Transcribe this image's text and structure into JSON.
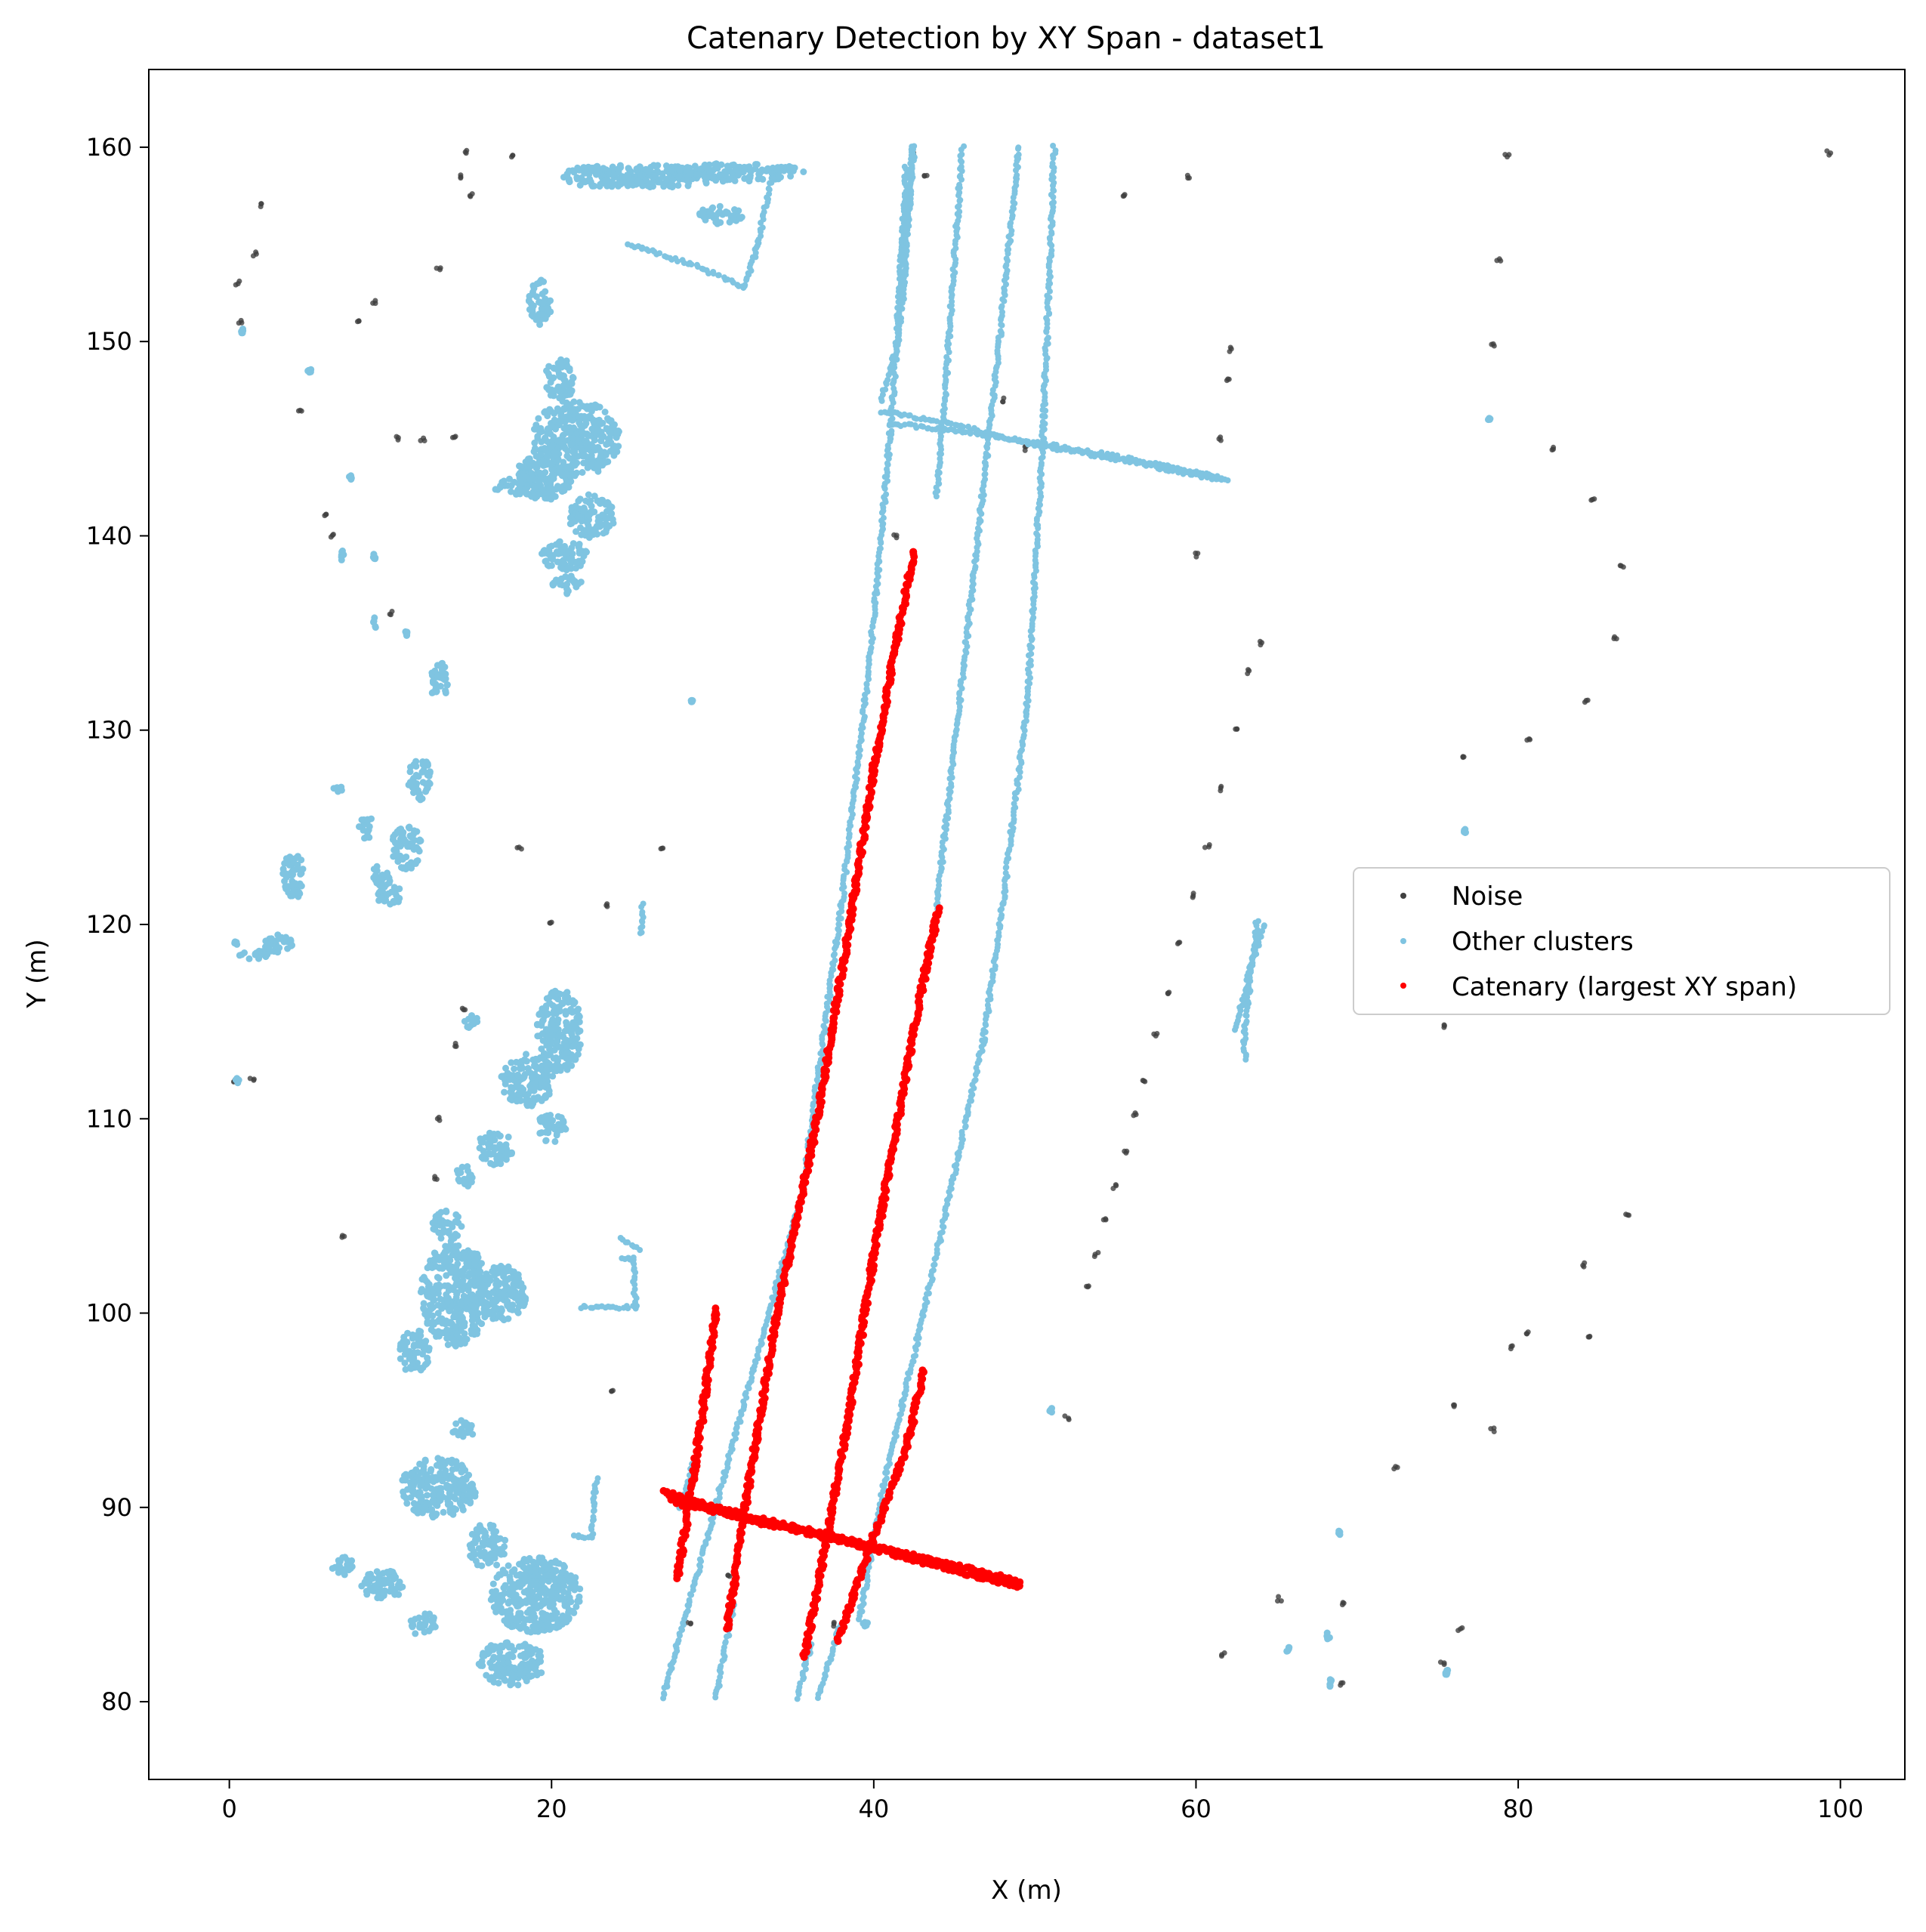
{
  "chart_data": {
    "type": "scatter",
    "title": "Catenary Detection by XY Span - dataset1",
    "xlabel": "X (m)",
    "ylabel": "Y (m)",
    "xlim": [
      -5,
      104
    ],
    "ylim": [
      76,
      164
    ],
    "xticks": [
      0,
      20,
      40,
      60,
      80,
      100
    ],
    "yticks": [
      80,
      90,
      100,
      110,
      120,
      130,
      140,
      150,
      160
    ],
    "grid": false,
    "legend_position": "center-right",
    "series": [
      {
        "name": "Noise",
        "color": "#404040",
        "style": "points",
        "points": [
          [
            0.5,
            153
          ],
          [
            0.7,
            151
          ],
          [
            1.6,
            154.5
          ],
          [
            2,
            157
          ],
          [
            0.3,
            112
          ],
          [
            1.4,
            112
          ],
          [
            4.4,
            146.5
          ],
          [
            6,
            141
          ],
          [
            6.4,
            140
          ],
          [
            8,
            151
          ],
          [
            9,
            152
          ],
          [
            10,
            136
          ],
          [
            10.5,
            145
          ],
          [
            12,
            145
          ],
          [
            13,
            153.7
          ],
          [
            14,
            145
          ],
          [
            14.3,
            158.5
          ],
          [
            14.7,
            159.8
          ],
          [
            15,
            157.5
          ],
          [
            17.5,
            159.5
          ],
          [
            14.6,
            115.6
          ],
          [
            14,
            113.8
          ],
          [
            13,
            110
          ],
          [
            12.8,
            107
          ],
          [
            26.8,
            124
          ],
          [
            23.5,
            121
          ],
          [
            23.8,
            96
          ],
          [
            7,
            104
          ],
          [
            18,
            124
          ],
          [
            20,
            120
          ],
          [
            28.5,
            84
          ],
          [
            31,
            86.5
          ],
          [
            37.5,
            84
          ],
          [
            41.3,
            140
          ],
          [
            42.4,
            159.7
          ],
          [
            43.2,
            158.5
          ],
          [
            48,
            147
          ],
          [
            49.5,
            144.5
          ],
          [
            59.5,
            158.5
          ],
          [
            55.5,
            157.5
          ],
          [
            60,
            139
          ],
          [
            61.5,
            145
          ],
          [
            62,
            148
          ],
          [
            62.2,
            149.6
          ],
          [
            64,
            134.5
          ],
          [
            63.3,
            133
          ],
          [
            62.5,
            130
          ],
          [
            61.6,
            127
          ],
          [
            60.7,
            124
          ],
          [
            59.8,
            121.5
          ],
          [
            59,
            119
          ],
          [
            58.2,
            116.5
          ],
          [
            57.5,
            114.3
          ],
          [
            56.8,
            112
          ],
          [
            56.2,
            110.2
          ],
          [
            55.6,
            108.3
          ],
          [
            55,
            106.5
          ],
          [
            54.4,
            104.8
          ],
          [
            53.8,
            103
          ],
          [
            53.2,
            101.3
          ],
          [
            79.3,
            159.6
          ],
          [
            78.8,
            154.2
          ],
          [
            78.4,
            149.8
          ],
          [
            82.2,
            144.5
          ],
          [
            84.6,
            141.9
          ],
          [
            86.4,
            138.5
          ],
          [
            86,
            134.8
          ],
          [
            84.2,
            131.5
          ],
          [
            80.6,
            129.5
          ],
          [
            76.6,
            128.6
          ],
          [
            75.4,
            114.8
          ],
          [
            86.8,
            105
          ],
          [
            84,
            102.5
          ],
          [
            84.5,
            98.8
          ],
          [
            80.5,
            99
          ],
          [
            79.5,
            98.2
          ],
          [
            76,
            95.2
          ],
          [
            78.4,
            94
          ],
          [
            72.4,
            92
          ],
          [
            76.4,
            83.7
          ],
          [
            65.2,
            85.3
          ],
          [
            69.2,
            85
          ],
          [
            61.7,
            82.4
          ],
          [
            69,
            80.9
          ],
          [
            75.3,
            82
          ],
          [
            52,
            94.6
          ],
          [
            99.3,
            159.7
          ]
        ]
      },
      {
        "name": "Other clusters",
        "color": "#7fc4e1",
        "style": "points",
        "points": [],
        "lines": [
          [
            [
              26.9,
              80.2
            ],
            [
              28.5,
              85
            ],
            [
              30.5,
              91
            ],
            [
              35.5,
              106
            ],
            [
              38,
              121
            ],
            [
              39.8,
              134
            ],
            [
              41,
              145
            ],
            [
              41.5,
              151
            ],
            [
              42,
              159
            ]
          ],
          [
            [
              28.8,
              92.2
            ],
            [
              28,
              90
            ]
          ],
          [
            [
              30.2,
              80.2
            ],
            [
              31.3,
              85
            ]
          ],
          [
            [
              35.3,
              80.2
            ],
            [
              36.1,
              83
            ]
          ],
          [
            [
              36.6,
              80.2
            ],
            [
              37.9,
              84
            ]
          ],
          [
            [
              39.1,
              84.2
            ],
            [
              40.6,
              91.1
            ],
            [
              43.1,
              100
            ],
            [
              45.2,
              108
            ],
            [
              46.8,
              114
            ],
            [
              48,
              121
            ],
            [
              49.5,
              131
            ],
            [
              50.5,
              145
            ],
            [
              51.2,
              160
            ]
          ],
          [
            [
              43.9,
              120.8
            ],
            [
              46.2,
              138
            ],
            [
              47.8,
              150
            ],
            [
              49,
              160
            ]
          ],
          [
            [
              43.9,
              142
            ],
            [
              44.5,
              148
            ],
            [
              45.5,
              160
            ]
          ],
          [
            [
              40.5,
              147
            ],
            [
              41.5,
              150
            ],
            [
              42.5,
              160
            ]
          ],
          [
            [
              41.8,
              152
            ],
            [
              42.4,
              160
            ]
          ],
          [
            [
              40.5,
              146.4
            ],
            [
              44.5,
              145.8
            ],
            [
              50,
              144.7
            ],
            [
              56,
              143.8
            ],
            [
              62,
              142.8
            ]
          ],
          [
            [
              41,
              145.8
            ],
            [
              47,
              145.2
            ],
            [
              55,
              144.1
            ],
            [
              61.5,
              143
            ]
          ],
          [
            [
              63.8,
              120.2
            ],
            [
              63.5,
              118
            ],
            [
              63.2,
              116
            ],
            [
              63,
              114
            ],
            [
              63.1,
              113
            ]
          ],
          [
            [
              62.5,
              114.6
            ],
            [
              63.4,
              117.8
            ],
            [
              64.2,
              120
            ]
          ],
          [
            [
              24.8,
              155
            ],
            [
              28.6,
              154
            ],
            [
              32,
              152.8
            ],
            [
              32.8,
              155
            ],
            [
              33.8,
              159
            ]
          ],
          [
            [
              24.3,
              102.8
            ],
            [
              25.1,
              102.8
            ],
            [
              25.2,
              100.3
            ],
            [
              21.8,
              100.3
            ]
          ],
          [
            [
              24.3,
              103.8
            ],
            [
              25.5,
              103.3
            ]
          ],
          [
            [
              21.4,
              88.5
            ],
            [
              22.5,
              88.5
            ],
            [
              22.6,
              90.2
            ],
            [
              22.8,
              91.5
            ]
          ],
          [
            [
              25.6,
              121
            ],
            [
              25.6,
              119.5
            ]
          ]
        ],
        "blobs": [
          [
            23.5,
            158.5,
            120,
            30
          ],
          [
            27,
            158.5,
            140,
            30
          ],
          [
            31.5,
            158.7,
            180,
            25
          ],
          [
            30.5,
            156.5,
            60,
            25
          ],
          [
            19.5,
            143,
            80,
            60
          ],
          [
            21.5,
            145,
            120,
            100
          ],
          [
            22.5,
            141,
            60,
            60
          ],
          [
            20.5,
            148,
            40,
            60
          ],
          [
            19.3,
            152,
            30,
            60
          ],
          [
            18.3,
            142.5,
            80,
            25
          ],
          [
            20.8,
            139,
            60,
            40
          ],
          [
            21,
            137.5,
            40,
            25
          ],
          [
            13,
            132.5,
            25,
            55
          ],
          [
            11.8,
            127.5,
            30,
            60
          ],
          [
            11,
            124,
            40,
            60
          ],
          [
            10,
            121.5,
            40,
            25
          ],
          [
            9.5,
            122.5,
            25,
            40
          ],
          [
            4,
            122.5,
            30,
            60
          ],
          [
            3,
            119,
            40,
            25
          ],
          [
            1.5,
            118.5,
            40,
            15
          ],
          [
            8.5,
            125,
            20,
            30
          ],
          [
            6.8,
            127,
            15,
            15
          ],
          [
            20.5,
            114.5,
            60,
            110
          ],
          [
            18.5,
            112,
            70,
            70
          ],
          [
            16.5,
            108.5,
            50,
            45
          ],
          [
            20,
            109.5,
            40,
            40
          ],
          [
            15,
            115,
            20,
            20
          ],
          [
            14.6,
            107,
            25,
            30
          ],
          [
            14,
            101,
            90,
            140
          ],
          [
            11.5,
            98,
            40,
            60
          ],
          [
            17,
            101,
            60,
            80
          ],
          [
            13.5,
            104.5,
            40,
            40
          ],
          [
            13,
            91,
            100,
            80
          ],
          [
            19,
            85.5,
            120,
            100
          ],
          [
            17.5,
            82,
            90,
            60
          ],
          [
            16,
            88,
            50,
            60
          ],
          [
            9.5,
            86,
            60,
            40
          ],
          [
            7,
            87,
            30,
            25
          ],
          [
            12,
            84,
            40,
            30
          ],
          [
            14.5,
            94,
            30,
            25
          ],
          [
            0.8,
            150.5,
            3,
            10
          ],
          [
            5,
            148.5,
            6,
            10
          ],
          [
            7.5,
            143,
            4,
            12
          ],
          [
            7,
            139,
            6,
            15
          ],
          [
            9,
            139,
            6,
            10
          ],
          [
            9,
            135.5,
            6,
            15
          ],
          [
            11,
            135,
            4,
            10
          ],
          [
            0.4,
            119,
            6,
            6
          ],
          [
            0.5,
            112,
            4,
            10
          ],
          [
            28.7,
            131.5,
            3,
            3
          ],
          [
            51,
            95,
            8,
            6
          ],
          [
            39.5,
            84,
            8,
            6
          ],
          [
            65.7,
            82.7,
            5,
            8
          ],
          [
            68.2,
            83.4,
            5,
            10
          ],
          [
            68.3,
            81,
            6,
            12
          ],
          [
            68.9,
            88.7,
            3,
            6
          ],
          [
            75.6,
            81.5,
            5,
            10
          ],
          [
            76.7,
            124.8,
            3,
            6
          ],
          [
            78.2,
            146,
            3,
            3
          ]
        ]
      },
      {
        "name": "Catenary (largest XY span)",
        "color": "#ff0000",
        "style": "points",
        "lines": [
          [
            [
              27.8,
              86.3
            ],
            [
              28.5,
              90
            ],
            [
              29.4,
              95
            ],
            [
              30.2,
              100.2
            ]
          ],
          [
            [
              30.9,
              83.7
            ],
            [
              32,
              90
            ],
            [
              34,
              100
            ],
            [
              36.5,
              110
            ],
            [
              38.5,
              120
            ],
            [
              40,
              128
            ],
            [
              41.5,
              135
            ],
            [
              42.5,
              139.2
            ]
          ],
          [
            [
              35.7,
              82.3
            ],
            [
              37,
              88
            ],
            [
              38.5,
              95
            ],
            [
              40,
              103
            ],
            [
              41.5,
              110
            ],
            [
              42.8,
              116
            ],
            [
              44,
              120.8
            ]
          ],
          [
            [
              37.8,
              83.2
            ],
            [
              40,
              88.5
            ],
            [
              42,
              93
            ],
            [
              43.1,
              97
            ]
          ],
          [
            [
              27,
              90.8
            ],
            [
              30,
              90
            ],
            [
              35,
              89
            ],
            [
              40,
              88
            ],
            [
              45,
              87
            ],
            [
              49,
              86.2
            ]
          ],
          [
            [
              27.5,
              90.3
            ],
            [
              33,
              89.2
            ],
            [
              38,
              88.3
            ],
            [
              43.5,
              87.1
            ],
            [
              49,
              85.9
            ]
          ]
        ]
      }
    ]
  }
}
